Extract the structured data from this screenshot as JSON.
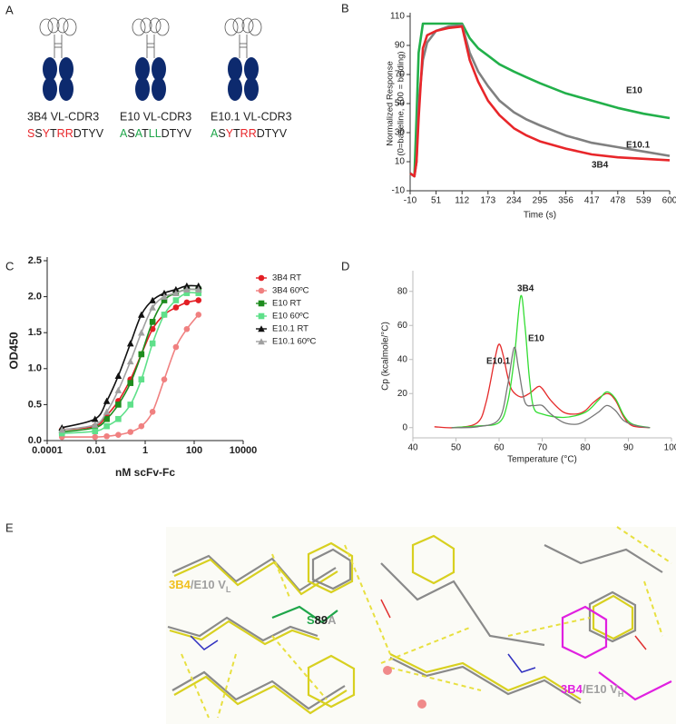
{
  "panel_labels": [
    "A",
    "B",
    "C",
    "D",
    "E"
  ],
  "panel_a": {
    "antibodies": [
      {
        "name": "3B4 VL-CDR3",
        "color": "#e8262a",
        "sequence": [
          {
            "text": "S",
            "color": "#e8262a"
          },
          {
            "text": "S",
            "color": "#222222"
          },
          {
            "text": "Y",
            "color": "#e8262a"
          },
          {
            "text": "T",
            "color": "#222222"
          },
          {
            "text": "RR",
            "color": "#e8262a"
          },
          {
            "text": "DTYV",
            "color": "#222222"
          }
        ]
      },
      {
        "name": "E10 VL-CDR3",
        "color": "#1fa64a",
        "sequence": [
          {
            "text": "A",
            "color": "#1fa64a"
          },
          {
            "text": "S",
            "color": "#222222"
          },
          {
            "text": "A",
            "color": "#1fa64a"
          },
          {
            "text": "T",
            "color": "#222222"
          },
          {
            "text": "LL",
            "color": "#1fa64a"
          },
          {
            "text": "DTYV",
            "color": "#222222"
          }
        ]
      },
      {
        "name": "E10.1 VL-CDR3",
        "color": "#9a9a9a",
        "sequence": [
          {
            "text": "A",
            "color": "#1fa64a"
          },
          {
            "text": "S",
            "color": "#222222"
          },
          {
            "text": "Y",
            "color": "#e8262a"
          },
          {
            "text": "T",
            "color": "#222222"
          },
          {
            "text": "RR",
            "color": "#e8262a"
          },
          {
            "text": "DTYV",
            "color": "#222222"
          }
        ]
      }
    ]
  },
  "chart_data": [
    {
      "type": "line",
      "xlabel": "Time (s)",
      "ylabel": [
        "Normalized Response",
        "(0=baseline, 100 = binding)"
      ],
      "x": [
        -10,
        -5,
        0,
        5,
        10,
        20,
        30,
        51,
        80,
        112,
        130,
        150,
        173,
        200,
        234,
        264,
        295,
        356,
        417,
        478,
        539,
        600
      ],
      "xlim": [
        -10,
        600
      ],
      "xticks": [
        -10,
        51,
        112,
        173,
        234,
        295,
        356,
        417,
        478,
        539,
        600
      ],
      "ylim": [
        -10,
        110
      ],
      "yticks": [
        -10,
        10,
        30,
        50,
        70,
        90,
        110
      ],
      "series": [
        {
          "name": "E10",
          "color": "#22b04a",
          "values": [
            2,
            1,
            0,
            40,
            85,
            105,
            105,
            105,
            105,
            105,
            95,
            88,
            83,
            77,
            72,
            68,
            64,
            57,
            52,
            47,
            43,
            40
          ]
        },
        {
          "name": "E10.1",
          "color": "#808080",
          "values": [
            2,
            1,
            0,
            10,
            50,
            80,
            92,
            100,
            103,
            104,
            85,
            72,
            62,
            52,
            44,
            39,
            35,
            28,
            23,
            20,
            17,
            14
          ]
        },
        {
          "name": "3B4",
          "color": "#e8262a",
          "values": [
            2,
            1,
            0,
            10,
            40,
            88,
            97,
            100,
            102,
            103,
            80,
            65,
            52,
            42,
            33,
            28,
            24,
            19,
            15,
            13,
            12,
            11
          ]
        }
      ]
    },
    {
      "type": "line",
      "xscale": "log",
      "xlabel": "nM scFv-Fc",
      "ylabel": "OD450",
      "legend": "right",
      "x": [
        0.0004,
        0.009,
        0.027,
        0.08,
        0.25,
        0.7,
        2,
        6,
        18,
        50,
        150
      ],
      "xlim": [
        0.0001,
        10000
      ],
      "xticks": [
        0.0001,
        0.01,
        1,
        100,
        10000
      ],
      "ylim": [
        0,
        2.5
      ],
      "yticks": [
        {
          "value": 0,
          "label": "0.0"
        },
        0.5,
        {
          "value": 1,
          "label": "1.0"
        },
        1.5,
        {
          "value": 2,
          "label": "2.0"
        },
        2.5
      ],
      "series": [
        {
          "name": "3B4 RT",
          "color": "#e31e24",
          "marker": "circle",
          "values": [
            0.15,
            0.2,
            0.35,
            0.55,
            0.85,
            1.2,
            1.55,
            1.75,
            1.85,
            1.92,
            1.95
          ]
        },
        {
          "name": "3B4 60ºC",
          "color": "#f08080",
          "marker": "circle",
          "values": [
            0.05,
            0.05,
            0.06,
            0.08,
            0.12,
            0.2,
            0.4,
            0.85,
            1.3,
            1.55,
            1.75
          ]
        },
        {
          "name": "E10 RT",
          "color": "#1e8c1e",
          "marker": "square",
          "values": [
            0.12,
            0.18,
            0.3,
            0.5,
            0.8,
            1.2,
            1.65,
            1.95,
            2.05,
            2.1,
            2.1
          ]
        },
        {
          "name": "E10 60ºC",
          "color": "#5fe08a",
          "marker": "square",
          "values": [
            0.1,
            0.13,
            0.2,
            0.3,
            0.5,
            0.85,
            1.35,
            1.75,
            1.95,
            2.05,
            2.05
          ]
        },
        {
          "name": "E10.1 RT",
          "color": "#111111",
          "marker": "triangle",
          "values": [
            0.18,
            0.3,
            0.55,
            0.9,
            1.35,
            1.75,
            1.95,
            2.05,
            2.1,
            2.15,
            2.15
          ]
        },
        {
          "name": "E10.1 60ºC",
          "color": "#a0a0a0",
          "marker": "triangle",
          "values": [
            0.15,
            0.22,
            0.4,
            0.7,
            1.1,
            1.5,
            1.85,
            2.0,
            2.05,
            2.1,
            2.1
          ]
        }
      ]
    },
    {
      "type": "line",
      "xlabel": "Temperature (°C)",
      "ylabel": "Cp (kcalmole/°C)",
      "xlim": [
        40,
        100
      ],
      "xticks": [
        40,
        50,
        60,
        70,
        80,
        90,
        100
      ],
      "ylim": [
        -6,
        90
      ],
      "yticks": [
        0,
        20,
        40,
        60,
        80
      ],
      "series": [
        {
          "name": "3B4",
          "color": "#e52a2a",
          "x": [
            45,
            50,
            55,
            57,
            59,
            60,
            61,
            62,
            63,
            65,
            67,
            69,
            70,
            72,
            75,
            78,
            80,
            82,
            85,
            87,
            89,
            91,
            95
          ],
          "values": [
            0.5,
            0,
            3,
            15,
            40,
            49,
            42,
            30,
            22,
            18,
            20,
            24,
            23,
            16,
            9,
            8,
            10,
            15,
            20,
            16,
            6,
            1,
            0
          ]
        },
        {
          "name": "E10",
          "color": "#33dd33",
          "x": [
            49,
            55,
            60,
            62,
            63.5,
            65,
            66,
            67,
            68,
            70,
            75,
            80,
            83,
            85,
            87,
            89,
            91,
            95
          ],
          "values": [
            0,
            1,
            3,
            15,
            40,
            77,
            60,
            30,
            12,
            8,
            6,
            9,
            16,
            21,
            17,
            7,
            2,
            0
          ]
        },
        {
          "name": "E10.1",
          "color": "#777777",
          "x": [
            49,
            55,
            60,
            62,
            63.5,
            64.5,
            66,
            68,
            70,
            72,
            75,
            78,
            80,
            83,
            85,
            87,
            89,
            92,
            95
          ],
          "values": [
            0,
            0.5,
            5,
            25,
            47,
            35,
            15,
            13,
            13,
            8,
            3,
            2,
            4,
            9,
            13,
            10,
            4,
            1,
            0
          ]
        }
      ]
    }
  ],
  "panel_e": {
    "labels": [
      {
        "segments": [
          {
            "text": "3B4",
            "color": "#f0c020"
          },
          {
            "text": "/E10 V",
            "color": "#a0a0a0"
          },
          {
            "text": "L",
            "color": "#a0a0a0",
            "sub": true
          }
        ]
      },
      {
        "segments": [
          {
            "text": "S",
            "color": "#1fa64a"
          },
          {
            "text": "89",
            "color": "#222222"
          },
          {
            "text": "A",
            "color": "#a0a0a0"
          }
        ]
      },
      {
        "segments": [
          {
            "text": "3B4",
            "color": "#e020e0"
          },
          {
            "text": "/E10 V",
            "color": "#a0a0a0"
          },
          {
            "text": "H",
            "color": "#a0a0a0",
            "sub": true
          }
        ]
      }
    ]
  }
}
